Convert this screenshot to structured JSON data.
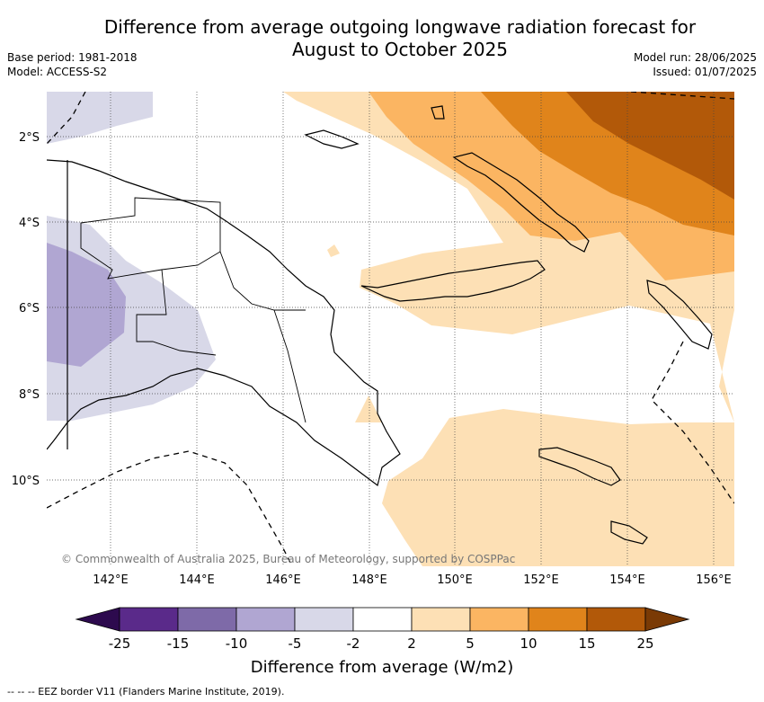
{
  "title_line1": "Difference from average outgoing longwave radiation forecast for",
  "title_line2": "August to October 2025",
  "meta_left": {
    "base_period": "Base period: 1981-2018",
    "model": "Model: ACCESS-S2"
  },
  "meta_right": {
    "model_run": "Model run: 28/06/2025",
    "issued": "Issued: 01/07/2025"
  },
  "lat_labels": [
    "2°S",
    "4°S",
    "6°S",
    "8°S",
    "10°S"
  ],
  "lon_labels": [
    "142°E",
    "144°E",
    "146°E",
    "148°E",
    "150°E",
    "152°E",
    "154°E",
    "156°E"
  ],
  "copyright": "© Commonwealth of Australia 2025, Bureau of Meteorology, supported by COSPPac",
  "colorbar": {
    "ticks": [
      "-25",
      "-15",
      "-10",
      "-5",
      "-2",
      "2",
      "5",
      "10",
      "15",
      "25"
    ],
    "colors": [
      "#2d0a4e",
      "#5a2a8a",
      "#7e6aa8",
      "#b0a6d2",
      "#d8d8e8",
      "#ffffff",
      "#fde0b5",
      "#fbb562",
      "#e0841b",
      "#b25909",
      "#7a3a05"
    ],
    "label": "Difference from average (W/m2)"
  },
  "footer": "--  --  -- EEZ border V11 (Flanders Marine Institute, 2019)."
}
